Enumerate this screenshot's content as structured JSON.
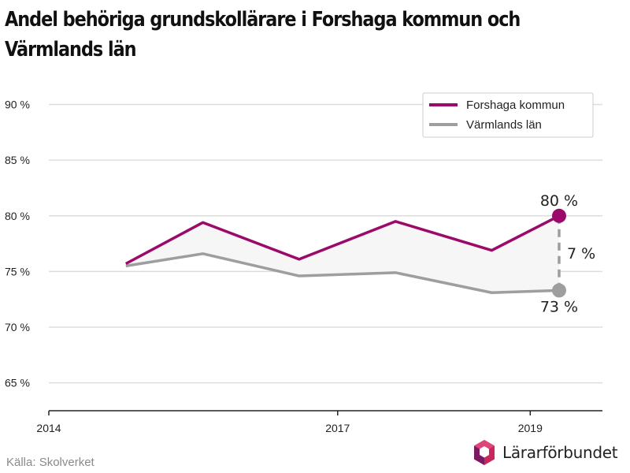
{
  "title_line1": "Andel behöriga grundskollärare i Forshaga kommun och",
  "title_line2": "Värmlands län",
  "source": "Källa: Skolverket",
  "brand": "Lärarförbundet",
  "colors": {
    "forshaga": "#9b0a6a",
    "varmland": "#9e9e9e",
    "grid": "#dddddd",
    "band": "#f6f6f6"
  },
  "chart_data": {
    "type": "line",
    "x": [
      2014.8,
      2015.6,
      2016.6,
      2017.6,
      2018.6,
      2019.3
    ],
    "series": [
      {
        "name": "Forshaga kommun",
        "values": [
          75.7,
          79.4,
          76.1,
          79.5,
          76.9,
          80.0
        ]
      },
      {
        "name": "Värmlands län",
        "values": [
          75.5,
          76.6,
          74.6,
          74.9,
          73.1,
          73.3
        ]
      }
    ],
    "xticks": [
      {
        "value": 2014,
        "label": "2014"
      },
      {
        "value": 2017,
        "label": "2017"
      },
      {
        "value": 2019,
        "label": "2019"
      }
    ],
    "yticks": [
      {
        "value": 65,
        "label": "65 %"
      },
      {
        "value": 70,
        "label": "70 %"
      },
      {
        "value": 75,
        "label": "75 %"
      },
      {
        "value": 80,
        "label": "80 %"
      },
      {
        "value": 85,
        "label": "85 %"
      },
      {
        "value": 90,
        "label": "90 %"
      }
    ],
    "xlim": [
      2014,
      2019.75
    ],
    "ylim": [
      62.5,
      92.3
    ],
    "grid": true,
    "legend_position": "top-right",
    "annotations": {
      "end_label_top": "80 %",
      "end_label_bottom": "73 %",
      "gap_label": "7 %"
    }
  }
}
